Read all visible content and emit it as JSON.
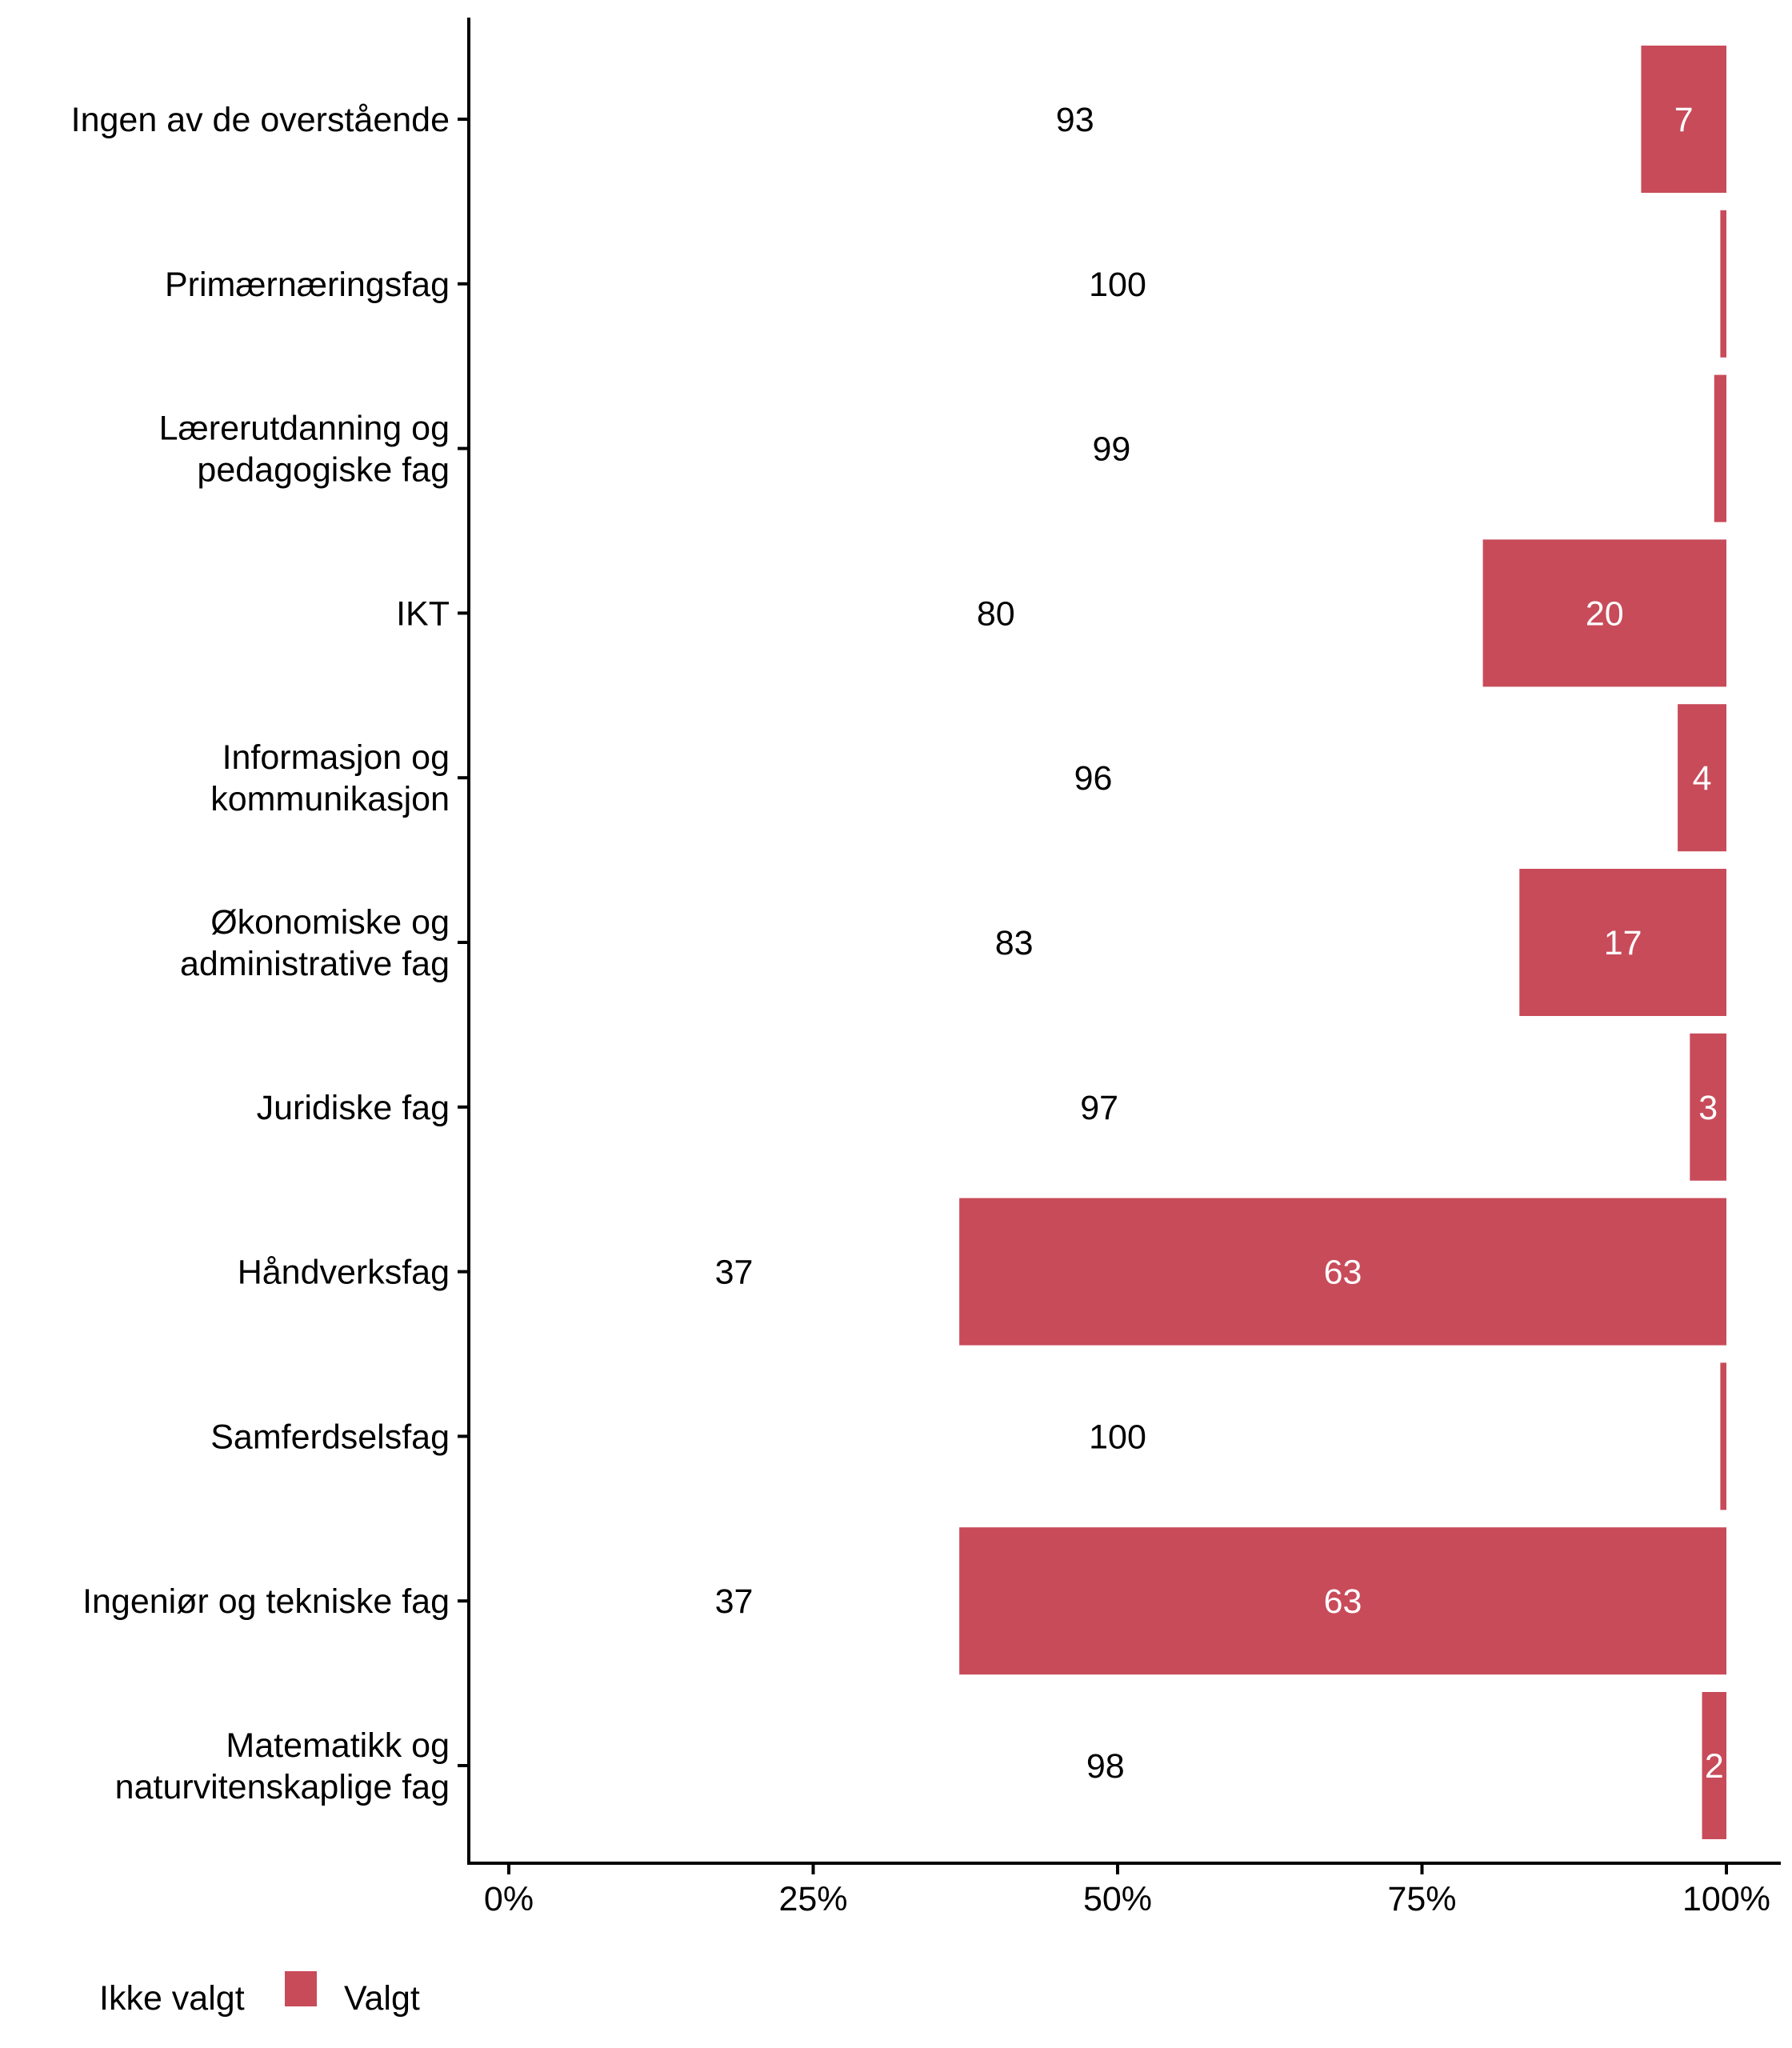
{
  "chart_data": {
    "type": "bar",
    "orientation": "horizontal",
    "stacked": true,
    "title": "",
    "xlabel": "",
    "ylabel": "",
    "xlim": [
      0,
      100
    ],
    "x_ticks": [
      "0%",
      "25%",
      "50%",
      "75%",
      "100%"
    ],
    "x_tick_values": [
      0,
      25,
      50,
      75,
      100
    ],
    "grid": false,
    "legend_position": "bottom-left",
    "categories": [
      [
        "Ingen av de overstående"
      ],
      [
        "Primærnæringsfag"
      ],
      [
        "Lærerutdanning og",
        "pedagogiske fag"
      ],
      [
        "IKT"
      ],
      [
        "Informasjon og",
        "kommunikasjon"
      ],
      [
        "Økonomiske og",
        "administrative fag"
      ],
      [
        "Juridiske fag"
      ],
      [
        "Håndverksfag"
      ],
      [
        "Samferdselsfag"
      ],
      [
        "Ingeniør og tekniske fag"
      ],
      [
        "Matematikk og",
        "naturvitenskaplige fag"
      ]
    ],
    "series": [
      {
        "name": "Ikke valgt",
        "color": "#ffffff",
        "values": [
          93,
          100,
          99,
          80,
          96,
          83,
          97,
          37,
          100,
          37,
          98
        ]
      },
      {
        "name": "Valgt",
        "color": "#c84b5a",
        "values": [
          7,
          0.5,
          1,
          20,
          4,
          17,
          3,
          63,
          0.5,
          63,
          2
        ]
      }
    ],
    "value_labels": {
      "Ikke valgt": [
        "93",
        "100",
        "99",
        "80",
        "96",
        "83",
        "97",
        "37",
        "100",
        "37",
        "98"
      ],
      "Valgt": [
        "7",
        "",
        "",
        "20",
        "4",
        "17",
        "3",
        "63",
        "",
        "63",
        "2"
      ]
    },
    "legend": [
      "Ikke valgt",
      "Valgt"
    ]
  }
}
